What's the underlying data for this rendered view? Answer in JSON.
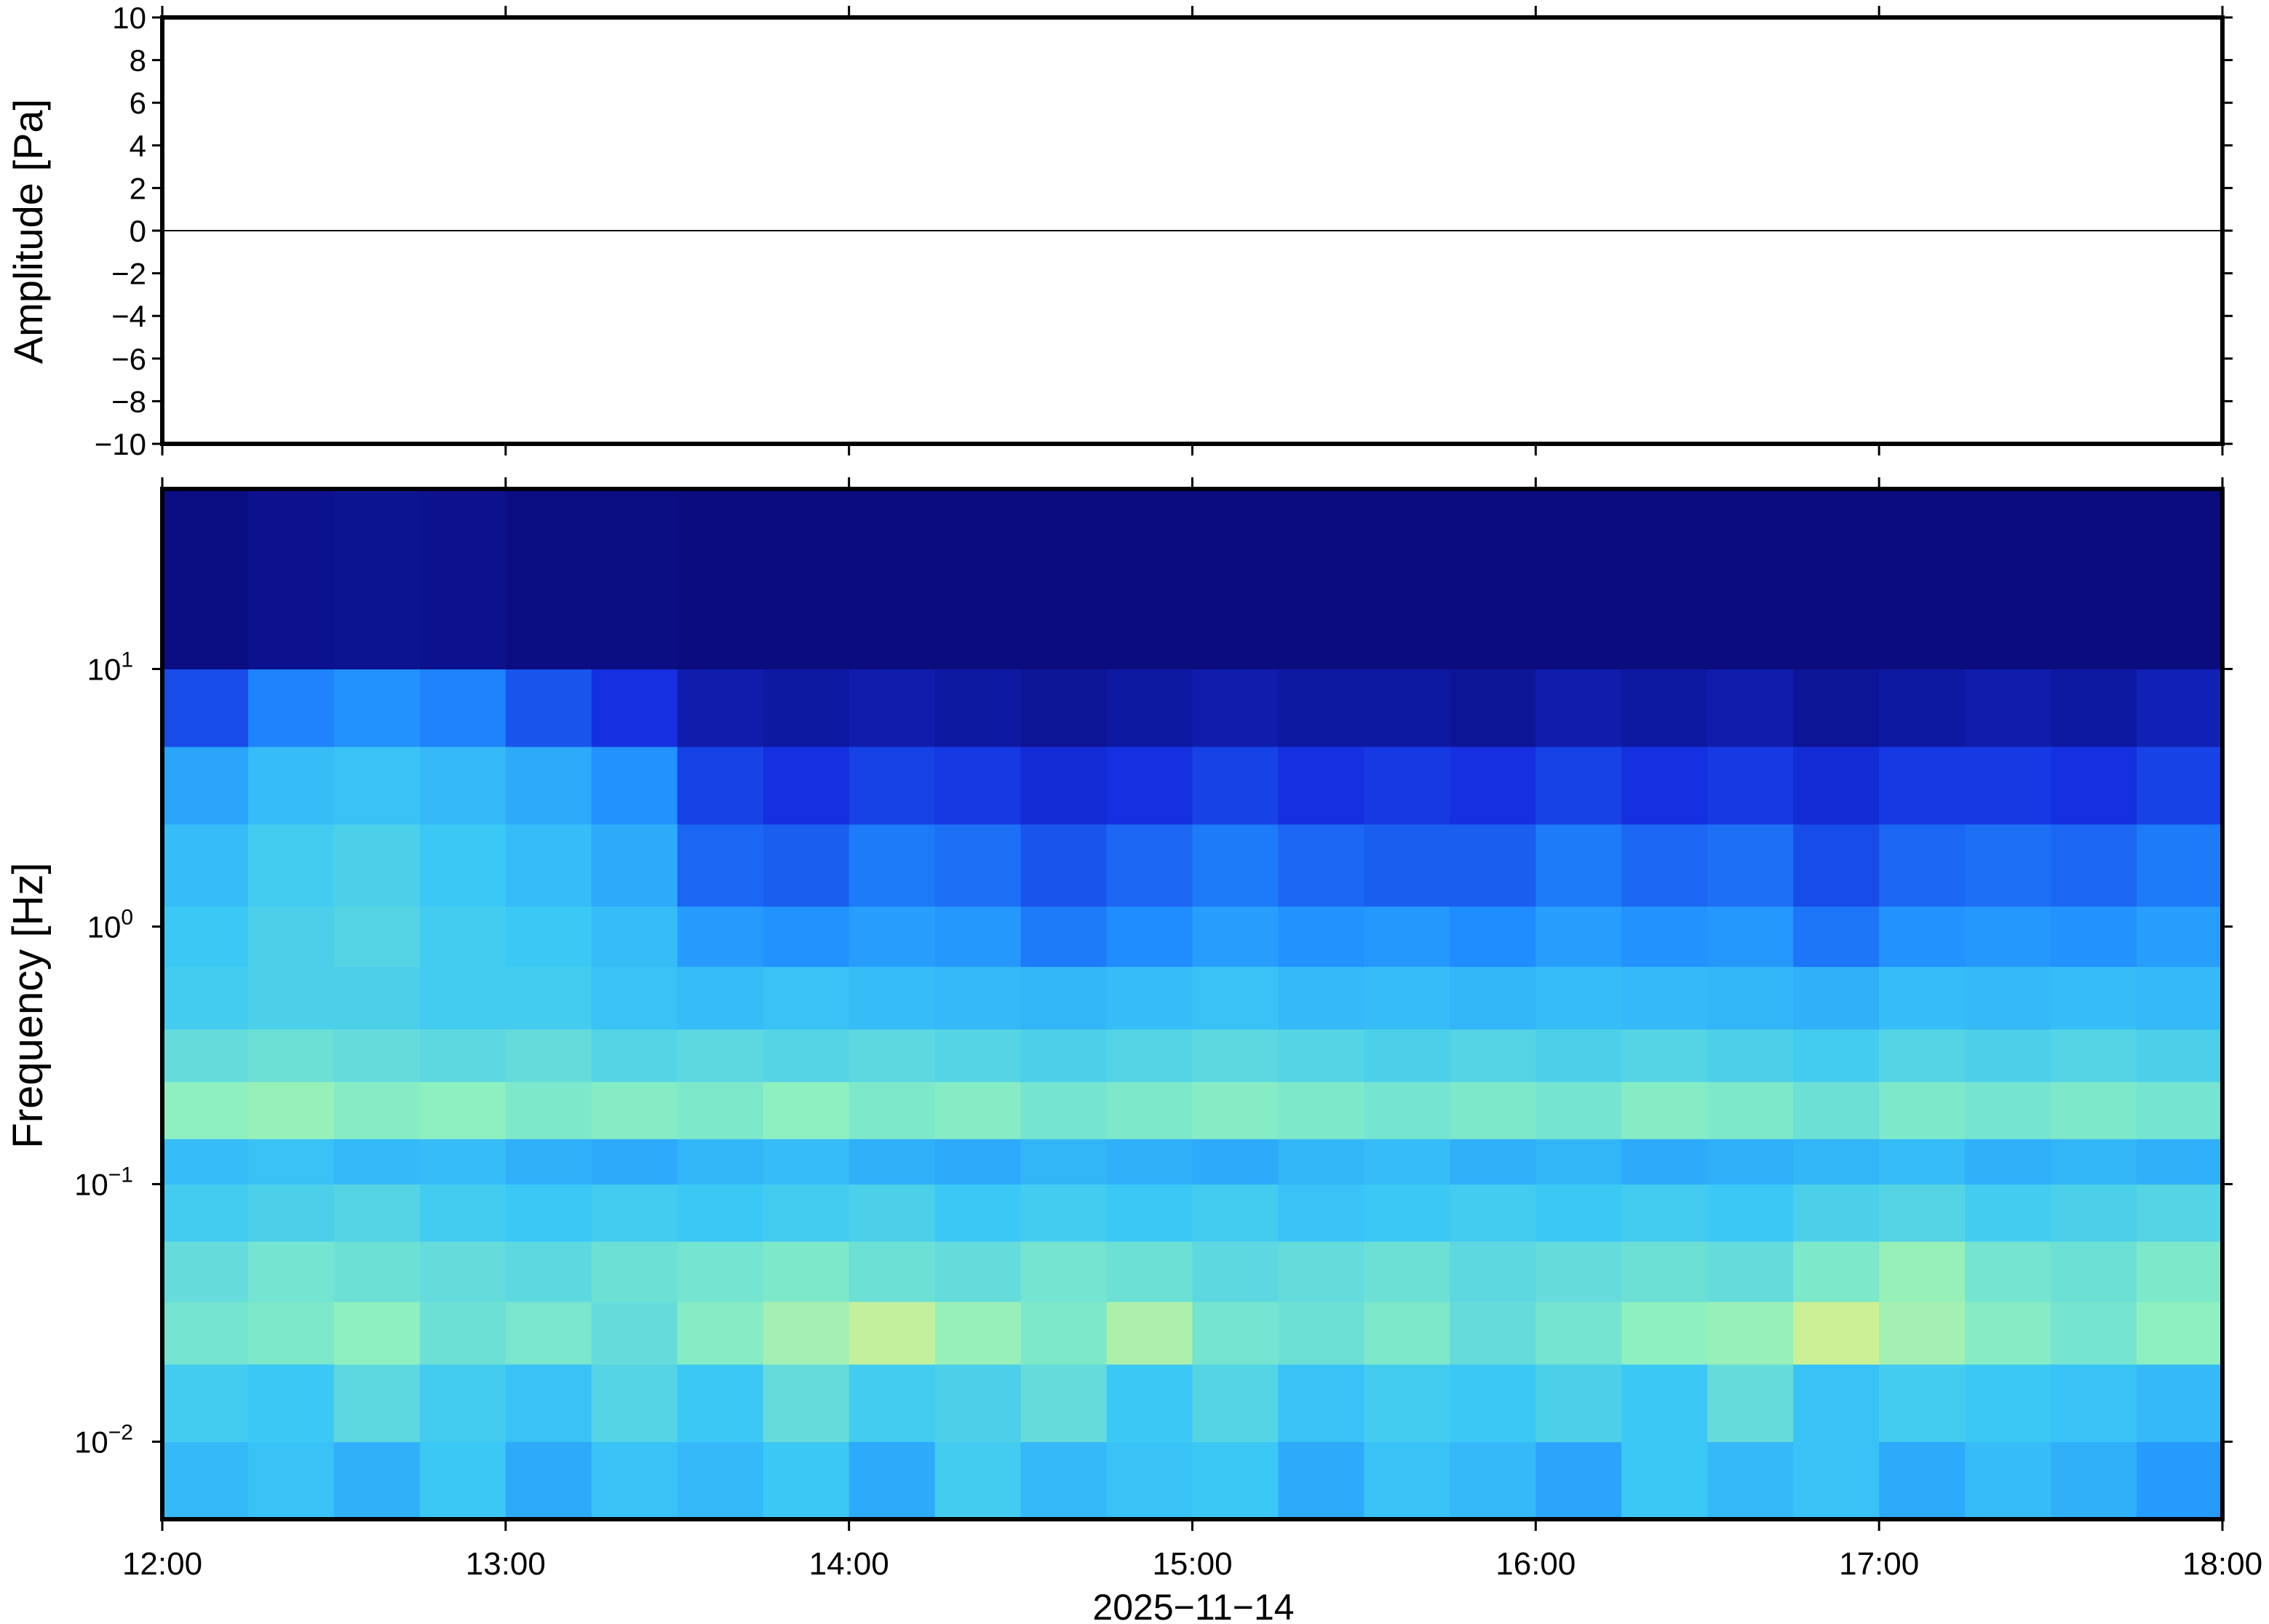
{
  "chart_data": [
    {
      "type": "line",
      "ylabel": "Amplitude [Pa]",
      "x": [
        0,
        360
      ],
      "values": [
        0,
        0
      ],
      "color": "#000000",
      "xlim": [
        0,
        360
      ],
      "ylim": [
        -10,
        10
      ],
      "yticks": [
        {
          "value": -10,
          "label": "−10"
        },
        {
          "value": -8,
          "label": "−8"
        },
        {
          "value": -6,
          "label": "−6"
        },
        {
          "value": -4,
          "label": "−4"
        },
        {
          "value": -2,
          "label": "−2"
        },
        0,
        2,
        4,
        6,
        8,
        10
      ]
    },
    {
      "type": "heatmap",
      "ylabel": "Frequency [Hz]",
      "xlabel": "2025−11−14",
      "xlim": [
        0,
        360
      ],
      "xticks": [
        {
          "value": 0,
          "label": "12:00"
        },
        {
          "value": 60,
          "label": "13:00"
        },
        {
          "value": 120,
          "label": "14:00"
        },
        {
          "value": 180,
          "label": "15:00"
        },
        {
          "value": 240,
          "label": "16:00"
        },
        {
          "value": 300,
          "label": "17:00"
        },
        {
          "value": 360,
          "label": "18:00"
        }
      ],
      "ylim": [
        0.005,
        50
      ],
      "ylog": true,
      "yticks": [
        {
          "value": 0.01,
          "label": "10",
          "exponent": "−2"
        },
        {
          "value": 0.1,
          "label": "10",
          "exponent": "−1"
        },
        {
          "value": 1,
          "label": "10",
          "exponent": "0"
        },
        {
          "value": 10,
          "label": "10",
          "exponent": "1"
        }
      ],
      "x_edges": [
        0,
        15,
        30,
        45,
        60,
        75,
        90,
        105,
        120,
        135,
        150,
        165,
        180,
        195,
        210,
        225,
        240,
        255,
        270,
        285,
        300,
        315,
        330,
        345,
        360
      ],
      "y_edges": [
        0.005,
        0.01,
        0.02,
        0.035,
        0.06,
        0.1,
        0.15,
        0.25,
        0.4,
        0.7,
        1.2,
        2.5,
        5,
        10,
        50
      ],
      "zlim": [
        0,
        1
      ],
      "colormap": [
        "#0a0a78",
        "#1530e0",
        "#1f8cff",
        "#3cc8f5",
        "#8ef0c0",
        "#f5f07a"
      ],
      "z": [
        [
          0.55,
          0.58,
          0.52,
          0.6,
          0.5,
          0.58,
          0.55,
          0.6,
          0.5,
          0.62,
          0.55,
          0.58,
          0.6,
          0.5,
          0.58,
          0.55,
          0.48,
          0.6,
          0.55,
          0.58,
          0.5,
          0.56,
          0.52,
          0.45
        ],
        [
          0.62,
          0.6,
          0.68,
          0.62,
          0.58,
          0.66,
          0.6,
          0.7,
          0.62,
          0.64,
          0.7,
          0.6,
          0.66,
          0.58,
          0.62,
          0.6,
          0.64,
          0.6,
          0.7,
          0.58,
          0.62,
          0.6,
          0.58,
          0.55
        ],
        [
          0.74,
          0.76,
          0.8,
          0.72,
          0.75,
          0.7,
          0.78,
          0.84,
          0.9,
          0.82,
          0.76,
          0.86,
          0.74,
          0.72,
          0.76,
          0.7,
          0.74,
          0.8,
          0.82,
          0.92,
          0.84,
          0.78,
          0.74,
          0.8
        ],
        [
          0.7,
          0.74,
          0.72,
          0.7,
          0.68,
          0.72,
          0.74,
          0.76,
          0.72,
          0.7,
          0.74,
          0.72,
          0.68,
          0.7,
          0.72,
          0.68,
          0.7,
          0.72,
          0.7,
          0.76,
          0.82,
          0.74,
          0.72,
          0.76
        ],
        [
          0.62,
          0.64,
          0.66,
          0.62,
          0.6,
          0.62,
          0.6,
          0.62,
          0.64,
          0.6,
          0.62,
          0.6,
          0.62,
          0.58,
          0.6,
          0.62,
          0.6,
          0.62,
          0.6,
          0.64,
          0.66,
          0.62,
          0.64,
          0.66
        ],
        [
          0.56,
          0.58,
          0.55,
          0.56,
          0.52,
          0.5,
          0.54,
          0.56,
          0.52,
          0.5,
          0.54,
          0.52,
          0.5,
          0.54,
          0.56,
          0.52,
          0.54,
          0.5,
          0.52,
          0.54,
          0.56,
          0.52,
          0.54,
          0.52
        ],
        [
          0.8,
          0.82,
          0.78,
          0.8,
          0.76,
          0.78,
          0.76,
          0.8,
          0.76,
          0.78,
          0.74,
          0.76,
          0.78,
          0.76,
          0.74,
          0.76,
          0.74,
          0.78,
          0.76,
          0.72,
          0.76,
          0.74,
          0.76,
          0.74
        ],
        [
          0.7,
          0.72,
          0.7,
          0.68,
          0.7,
          0.66,
          0.68,
          0.66,
          0.68,
          0.66,
          0.64,
          0.66,
          0.68,
          0.66,
          0.64,
          0.66,
          0.64,
          0.66,
          0.64,
          0.62,
          0.66,
          0.64,
          0.66,
          0.64
        ],
        [
          0.62,
          0.64,
          0.64,
          0.62,
          0.62,
          0.58,
          0.56,
          0.58,
          0.56,
          0.55,
          0.54,
          0.56,
          0.58,
          0.55,
          0.56,
          0.54,
          0.56,
          0.55,
          0.54,
          0.52,
          0.56,
          0.55,
          0.56,
          0.55
        ],
        [
          0.6,
          0.64,
          0.66,
          0.62,
          0.6,
          0.56,
          0.45,
          0.42,
          0.46,
          0.44,
          0.36,
          0.4,
          0.46,
          0.42,
          0.44,
          0.4,
          0.46,
          0.42,
          0.44,
          0.35,
          0.42,
          0.44,
          0.42,
          0.46
        ],
        [
          0.56,
          0.62,
          0.64,
          0.6,
          0.56,
          0.5,
          0.32,
          0.3,
          0.36,
          0.34,
          0.28,
          0.32,
          0.36,
          0.32,
          0.3,
          0.3,
          0.36,
          0.32,
          0.34,
          0.26,
          0.32,
          0.34,
          0.32,
          0.36
        ],
        [
          0.48,
          0.56,
          0.58,
          0.55,
          0.5,
          0.42,
          0.24,
          0.2,
          0.24,
          0.22,
          0.18,
          0.2,
          0.24,
          0.2,
          0.22,
          0.2,
          0.24,
          0.2,
          0.22,
          0.18,
          0.22,
          0.22,
          0.2,
          0.24
        ],
        [
          0.26,
          0.38,
          0.42,
          0.38,
          0.28,
          0.2,
          0.1,
          0.08,
          0.1,
          0.08,
          0.06,
          0.08,
          0.1,
          0.08,
          0.08,
          0.06,
          0.1,
          0.08,
          0.1,
          0.06,
          0.08,
          0.1,
          0.08,
          0.12
        ],
        [
          0.02,
          0.04,
          0.05,
          0.04,
          0.02,
          0.02,
          0.01,
          0.01,
          0.01,
          0.01,
          0.01,
          0.01,
          0.01,
          0.01,
          0.01,
          0.01,
          0.01,
          0.01,
          0.01,
          0.01,
          0.01,
          0.01,
          0.01,
          0.01
        ]
      ]
    }
  ]
}
